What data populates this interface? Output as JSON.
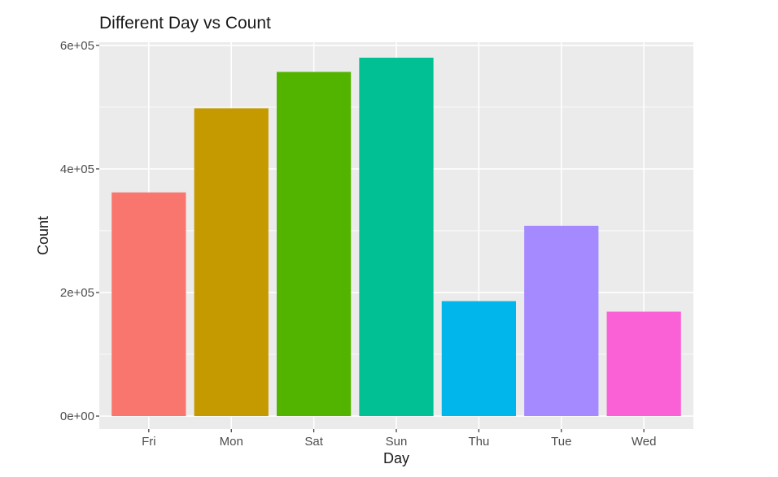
{
  "chart_data": {
    "type": "bar",
    "title": "Different Day vs Count",
    "xlabel": "Day",
    "ylabel": "Count",
    "categories": [
      "Fri",
      "Mon",
      "Sat",
      "Sun",
      "Thu",
      "Tue",
      "Wed"
    ],
    "values": [
      362000,
      498000,
      557000,
      580000,
      186000,
      308000,
      169000
    ],
    "colors": [
      "#F8766D",
      "#C49A00",
      "#53B400",
      "#00C094",
      "#00B6EB",
      "#A58AFF",
      "#FB61D7"
    ],
    "ylim": [
      -21000,
      605000
    ],
    "yticks": [
      0,
      200000,
      400000,
      600000
    ],
    "ytick_labels": [
      "0e+00",
      "2e+05",
      "4e+05",
      "6e+05"
    ],
    "grid": true,
    "panel_background": "#EBEBEB",
    "grid_color": "#FFFFFF"
  }
}
